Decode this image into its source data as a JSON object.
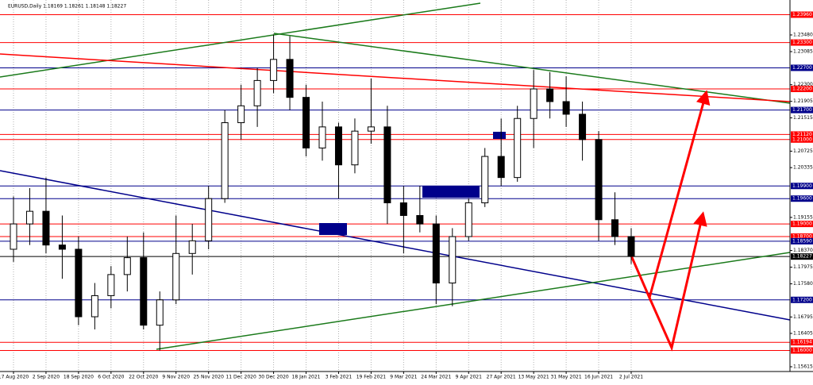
{
  "chart_data": {
    "type": "candlestick",
    "title": "EURUSD,Daily  1.18169 1.18261 1.18148 1.18227",
    "categories": [
      "17 Aug 2020",
      null,
      "2 Sep 2020",
      null,
      "18 Sep 2020",
      null,
      "6 Oct 2020",
      null,
      "22 Oct 2020",
      null,
      "9 Nov 2020",
      null,
      "25 Nov 2020",
      null,
      "11 Dec 2020",
      null,
      "30 Dec 2020",
      null,
      "18 Jan 2021",
      null,
      "3 Feb 2021",
      null,
      "19 Feb 2021",
      null,
      "9 Mar 2021",
      null,
      "24 Mar 2021",
      null,
      "9 Apr 2021",
      null,
      "27 Apr 2021",
      null,
      "13 May 2021",
      null,
      "31 May 2021",
      null,
      "16 Jun 2021",
      null,
      "2 Jul 2021"
    ],
    "open": [
      1.184,
      1.19,
      1.193,
      1.185,
      1.184,
      1.168,
      1.173,
      1.178,
      1.182,
      1.166,
      1.172,
      1.183,
      1.186,
      1.196,
      1.214,
      1.218,
      1.224,
      1.229,
      1.22,
      1.208,
      1.213,
      1.204,
      1.212,
      1.213,
      1.195,
      1.192,
      1.19,
      1.176,
      1.187,
      1.195,
      1.206,
      1.201,
      1.215,
      1.222,
      1.219,
      1.216,
      1.21,
      1.191,
      1.187
    ],
    "high": [
      1.1965,
      1.1985,
      1.201,
      1.192,
      1.187,
      1.176,
      1.18,
      1.187,
      1.188,
      1.174,
      1.192,
      1.19,
      1.199,
      1.217,
      1.223,
      1.227,
      1.2349,
      1.2345,
      1.223,
      1.219,
      1.214,
      1.215,
      1.2245,
      1.218,
      1.199,
      1.199,
      1.192,
      1.189,
      1.196,
      1.208,
      1.215,
      1.218,
      1.2265,
      1.226,
      1.225,
      1.219,
      1.212,
      1.1975,
      1.189
    ],
    "low": [
      1.181,
      1.185,
      1.183,
      1.177,
      1.166,
      1.165,
      1.17,
      1.174,
      1.165,
      1.16,
      1.171,
      1.178,
      1.184,
      1.195,
      1.21,
      1.213,
      1.221,
      1.217,
      1.206,
      1.205,
      1.196,
      1.202,
      1.209,
      1.19,
      1.183,
      1.188,
      1.171,
      1.1705,
      1.186,
      1.194,
      1.199,
      1.2,
      1.208,
      1.215,
      1.213,
      1.205,
      1.186,
      1.185,
      1.1805
    ],
    "close": [
      1.19,
      1.193,
      1.185,
      1.184,
      1.168,
      1.173,
      1.178,
      1.182,
      1.166,
      1.172,
      1.183,
      1.186,
      1.196,
      1.214,
      1.218,
      1.224,
      1.229,
      1.22,
      1.208,
      1.213,
      1.204,
      1.212,
      1.213,
      1.195,
      1.192,
      1.19,
      1.176,
      1.187,
      1.195,
      1.206,
      1.201,
      1.215,
      1.222,
      1.219,
      1.216,
      1.21,
      1.191,
      1.187,
      1.1823
    ],
    "up_color": "#ffffff",
    "down_color": "#000000",
    "ylim": [
      1.15502,
      1.24308
    ],
    "yticks": [
      {
        "value": 1.2348,
        "label": "1.23480"
      },
      {
        "value": 1.23085,
        "label": "1.23085"
      },
      {
        "value": 1.223,
        "label": "1.22300"
      },
      {
        "value": 1.21905,
        "label": "1.21905"
      },
      {
        "value": 1.21515,
        "label": "1.21515"
      },
      {
        "value": 1.20725,
        "label": "1.20725"
      },
      {
        "value": 1.20335,
        "label": "1.20335"
      },
      {
        "value": 1.19155,
        "label": "1.19155"
      },
      {
        "value": 1.1837,
        "label": "1.18370"
      },
      {
        "value": 1.17975,
        "label": "1.17975"
      },
      {
        "value": 1.1758,
        "label": "1.17580"
      },
      {
        "value": 1.16795,
        "label": "1.16795"
      },
      {
        "value": 1.16405,
        "label": "1.16405"
      },
      {
        "value": 1.15615,
        "label": "1.15615"
      }
    ],
    "levels": [
      {
        "value": 1.2396,
        "label": "1.23960",
        "color": "#ff0000"
      },
      {
        "value": 1.233,
        "label": "1.23300",
        "color": "#ff0000"
      },
      {
        "value": 1.227,
        "label": "1.22700",
        "color": "#00008b"
      },
      {
        "value": 1.222,
        "label": "1.22200",
        "color": "#ff0000"
      },
      {
        "value": 1.217,
        "label": "1.21700",
        "color": "#00008b"
      },
      {
        "value": 1.2112,
        "label": "1.21120",
        "color": "#ff0000"
      },
      {
        "value": 1.21,
        "label": "1.21000",
        "color": "#ff0000"
      },
      {
        "value": 1.199,
        "label": "1.19900",
        "color": "#00008b"
      },
      {
        "value": 1.196,
        "label": "1.19600",
        "color": "#00008b"
      },
      {
        "value": 1.19,
        "label": "1.19000",
        "color": "#ff0000"
      },
      {
        "value": 1.187,
        "label": "1.18700",
        "color": "#ff0000"
      },
      {
        "value": 1.1859,
        "label": "1.18590",
        "color": "#00008b"
      },
      {
        "value": 1.18227,
        "label": "1.18227",
        "color": "#000000"
      },
      {
        "value": 1.172,
        "label": "1.17200",
        "color": "#00008b"
      },
      {
        "value": 1.16194,
        "label": "1.16194",
        "color": "#ff0000"
      },
      {
        "value": 1.16,
        "label": "1.16000",
        "color": "#ff0000"
      }
    ],
    "grid": true
  }
}
